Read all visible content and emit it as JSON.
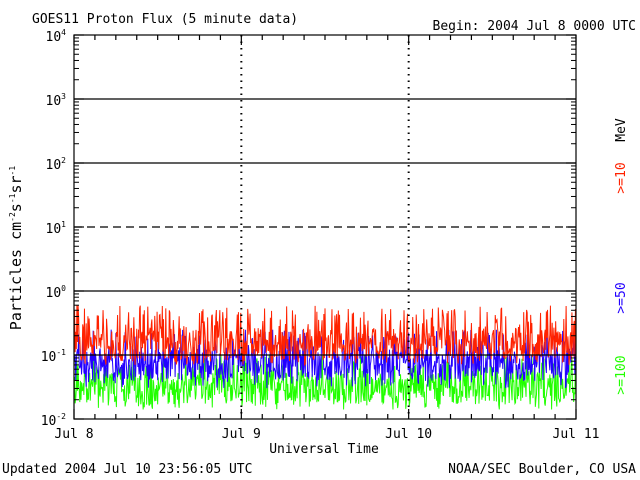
{
  "chart_data": {
    "type": "line",
    "title": "GOES11 Proton Flux (5 minute data)",
    "begin": "Begin: 2004 Jul 8 0000 UTC",
    "ylabel": {
      "main": "Particles cm",
      "exp1": "-2",
      "s": "s",
      "exp2": "-1",
      "sr": "sr",
      "exp3": "-1"
    },
    "xlabel": "Universal Time",
    "yscale": "log",
    "ylim": [
      0.01,
      10000
    ],
    "xlim": [
      0,
      3
    ],
    "x_ticks": [
      {
        "pos": 0,
        "label": "Jul 8"
      },
      {
        "pos": 1,
        "label": "Jul 9"
      },
      {
        "pos": 2,
        "label": "Jul 10"
      },
      {
        "pos": 3,
        "label": "Jul 11"
      }
    ],
    "y_ticks": [
      {
        "exp": -2,
        "base": "10",
        "power": "-2"
      },
      {
        "exp": -1,
        "base": "10",
        "power": "-1"
      },
      {
        "exp": 0,
        "base": "10",
        "power": "0"
      },
      {
        "exp": 1,
        "base": "10",
        "power": "1"
      },
      {
        "exp": 2,
        "base": "10",
        "power": "2"
      },
      {
        "exp": 3,
        "base": "10",
        "power": "3"
      },
      {
        "exp": 4,
        "base": "10",
        "power": "4"
      }
    ],
    "threshold_lines": [
      {
        "value": 0.1,
        "style": "solid"
      },
      {
        "value": 1,
        "style": "solid"
      },
      {
        "value": 10,
        "style": "dashed"
      },
      {
        "value": 100,
        "style": "solid"
      },
      {
        "value": 1000,
        "style": "solid"
      }
    ],
    "legend": {
      "unit": "MeV",
      "placement": "right",
      "entries": [
        {
          "label": ">=10",
          "color": "#ff2200"
        },
        {
          "label": ">=50",
          "color": "#2200ff"
        },
        {
          "label": ">=100",
          "color": "#22ff00"
        }
      ]
    },
    "series": [
      {
        "name": ">=10",
        "color": "#ff2200",
        "baseline": 0.15,
        "typical_range": [
          0.07,
          0.6
        ]
      },
      {
        "name": ">=50",
        "color": "#2200ff",
        "baseline": 0.07,
        "typical_range": [
          0.03,
          0.25
        ]
      },
      {
        "name": ">=100",
        "color": "#22ff00",
        "baseline": 0.03,
        "typical_range": [
          0.014,
          0.1
        ]
      }
    ]
  },
  "footer": {
    "updated": "Updated 2004 Jul 10 23:56:05 UTC",
    "source": "NOAA/SEC Boulder, CO USA"
  }
}
